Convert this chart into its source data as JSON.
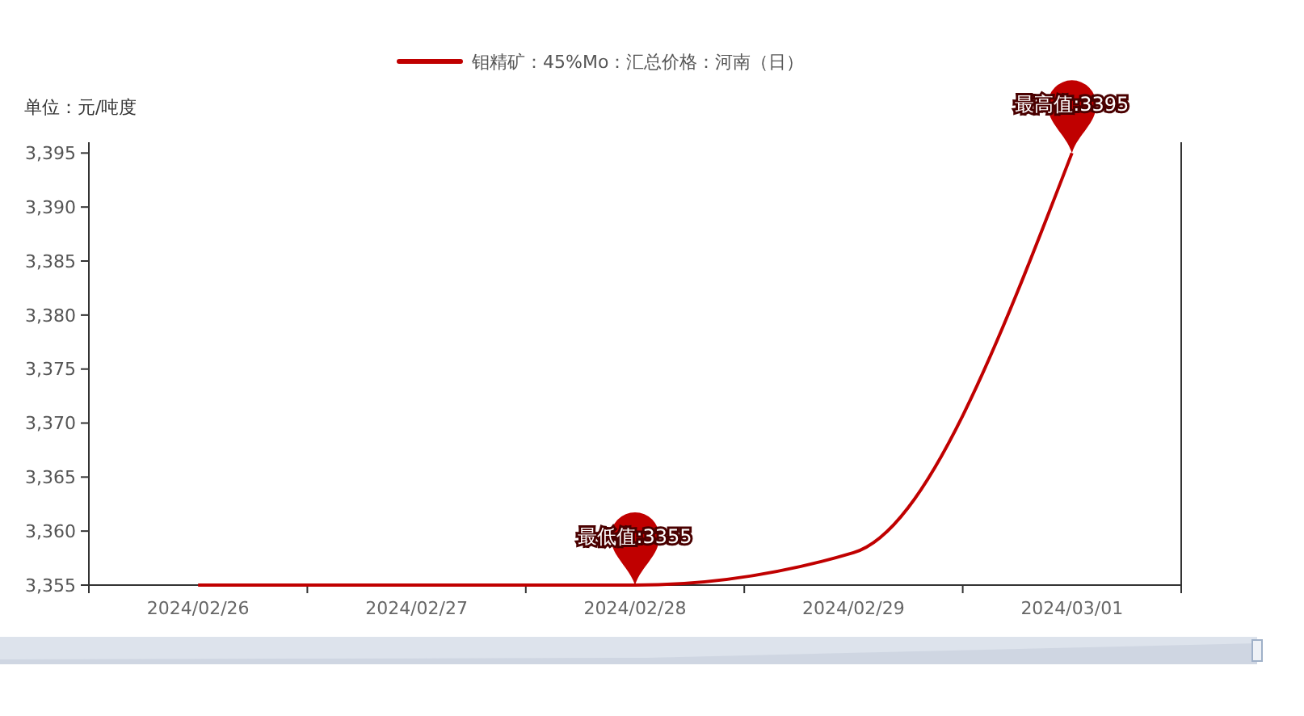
{
  "chart_data": {
    "type": "line",
    "ylabel": "单位：元/吨度",
    "categories": [
      "2024/02/26",
      "2024/02/27",
      "2024/02/28",
      "2024/02/29",
      "2024/03/01"
    ],
    "series": [
      {
        "name": "钼精矿：45%Mo：汇总价格：河南（日）",
        "color": "#c00000",
        "values": [
          3355,
          3355,
          3355,
          3358,
          3395
        ]
      }
    ],
    "ylim": [
      3355,
      3396
    ],
    "yticks": [
      {
        "value": 3355,
        "label": "3,355"
      },
      {
        "value": 3360,
        "label": "3,360"
      },
      {
        "value": 3365,
        "label": "3,365"
      },
      {
        "value": 3370,
        "label": "3,370"
      },
      {
        "value": 3375,
        "label": "3,375"
      },
      {
        "value": 3380,
        "label": "3,380"
      },
      {
        "value": 3385,
        "label": "3,385"
      },
      {
        "value": 3390,
        "label": "3,390"
      },
      {
        "value": 3395,
        "label": "3,395"
      }
    ],
    "annotations": [
      {
        "text": "最低值:3355",
        "x": "2024/02/28",
        "y": 3355
      },
      {
        "text": "最高值:3395",
        "x": "2024/03/01",
        "y": 3395
      }
    ],
    "legend": "top",
    "grid": false,
    "marker": "none",
    "line_style": "solid"
  }
}
